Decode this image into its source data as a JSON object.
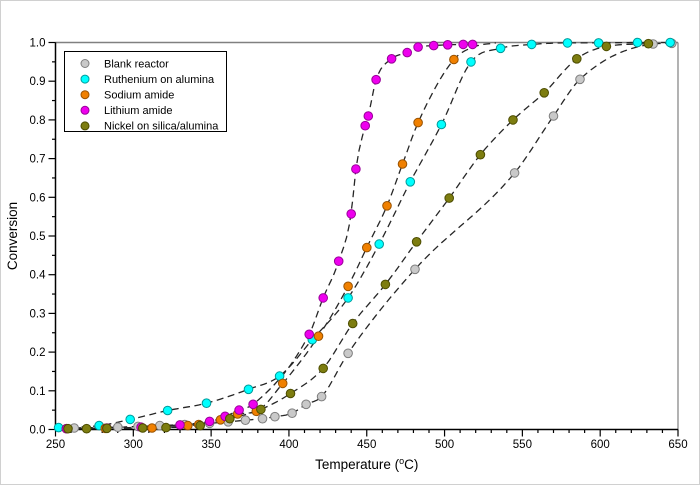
{
  "figure": {
    "background": "#ffffff",
    "border_color": "#d0d0d0"
  },
  "chart_data": {
    "type": "scatter",
    "title": "",
    "xlabel": "Temperature (°C)",
    "ylabel": "Conversion",
    "xlim": [
      250,
      650
    ],
    "ylim": [
      0.0,
      1.0
    ],
    "x_major_tick": 50,
    "x_minor_tick": 10,
    "y_major_tick": 0.1,
    "y_minor_tick": 0.05,
    "grid": false,
    "legend_position": "top-left",
    "fit_line_style": "dashed",
    "fit_line_color": "#262626",
    "frame_color": "#808080",
    "axis_color": "#000000",
    "series": [
      {
        "name": "Blank reactor",
        "slug": "blank-reactor",
        "color": "#c9c9c9",
        "edge": "#7f7f7f",
        "points": [
          [
            262,
            0.004
          ],
          [
            290,
            0.006
          ],
          [
            303,
            0.008
          ],
          [
            317,
            0.01
          ],
          [
            333,
            0.013
          ],
          [
            349,
            0.016
          ],
          [
            361,
            0.02
          ],
          [
            372,
            0.024
          ],
          [
            383,
            0.028
          ],
          [
            391,
            0.033
          ],
          [
            402,
            0.042
          ],
          [
            411,
            0.065
          ],
          [
            421,
            0.085
          ],
          [
            438,
            0.197
          ],
          [
            481,
            0.414
          ],
          [
            545,
            0.663
          ],
          [
            570,
            0.81
          ],
          [
            587,
            0.905
          ],
          [
            634,
            0.996
          ],
          [
            646,
            0.998
          ]
        ],
        "line_anchors": []
      },
      {
        "name": "Ruthenium on alumina",
        "slug": "ruthenium-on-alumina",
        "color": "#00ffff",
        "edge": "#009a9a",
        "points": [
          [
            252,
            0.005
          ],
          [
            278,
            0.01
          ],
          [
            298,
            0.026
          ],
          [
            322,
            0.049
          ],
          [
            347,
            0.068
          ],
          [
            374,
            0.104
          ],
          [
            394,
            0.138
          ],
          [
            415,
            0.232
          ],
          [
            438,
            0.34
          ],
          [
            458,
            0.479
          ],
          [
            478,
            0.64
          ],
          [
            498,
            0.788
          ],
          [
            517,
            0.95
          ],
          [
            536,
            0.985
          ],
          [
            556,
            0.995
          ],
          [
            579,
            0.999
          ],
          [
            599,
            0.999
          ],
          [
            624,
            1.0
          ],
          [
            645,
            1.0
          ]
        ],
        "line_anchors": []
      },
      {
        "name": "Sodium amide",
        "slug": "sodium-amide",
        "color": "#f08000",
        "edge": "#995200",
        "points": [
          [
            257,
            0.002
          ],
          [
            282,
            0.003
          ],
          [
            312,
            0.004
          ],
          [
            335,
            0.01
          ],
          [
            342,
            0.013
          ],
          [
            356,
            0.025
          ],
          [
            367,
            0.04
          ],
          [
            379,
            0.047
          ],
          [
            396,
            0.119
          ],
          [
            419,
            0.241
          ],
          [
            438,
            0.37
          ],
          [
            450,
            0.47
          ],
          [
            463,
            0.578
          ],
          [
            473,
            0.686
          ],
          [
            483,
            0.793
          ],
          [
            506,
            0.956
          ]
        ],
        "line_anchors": [
          [
            520,
            0.99
          ],
          [
            533,
            0.999
          ]
        ]
      },
      {
        "name": "Lithium amide",
        "slug": "lithium-amide",
        "color": "#ee00ee",
        "edge": "#990099",
        "points": [
          [
            257,
            0.002
          ],
          [
            283,
            0.004
          ],
          [
            305,
            0.006
          ],
          [
            330,
            0.012
          ],
          [
            349,
            0.021
          ],
          [
            359,
            0.034
          ],
          [
            368,
            0.05
          ],
          [
            377,
            0.065
          ],
          [
            413,
            0.246
          ],
          [
            422,
            0.34
          ],
          [
            432,
            0.435
          ],
          [
            440,
            0.557
          ],
          [
            443,
            0.673
          ],
          [
            449,
            0.785
          ],
          [
            451,
            0.81
          ],
          [
            456,
            0.904
          ],
          [
            466,
            0.958
          ],
          [
            476,
            0.974
          ],
          [
            483,
            0.988
          ],
          [
            493,
            0.992
          ],
          [
            502,
            0.994
          ],
          [
            512,
            0.995
          ],
          [
            518,
            0.995
          ]
        ],
        "line_anchors": []
      },
      {
        "name": "Nickel on silica/alumina",
        "slug": "nickel-on-silica-alumina",
        "color": "#7d7d10",
        "edge": "#4d4d00",
        "points": [
          [
            258,
            0.002
          ],
          [
            270,
            0.002
          ],
          [
            283,
            0.003
          ],
          [
            306,
            0.004
          ],
          [
            321,
            0.005
          ],
          [
            343,
            0.01
          ],
          [
            362,
            0.028
          ],
          [
            382,
            0.052
          ],
          [
            401,
            0.093
          ],
          [
            422,
            0.158
          ],
          [
            441,
            0.274
          ],
          [
            462,
            0.375
          ],
          [
            482,
            0.485
          ],
          [
            503,
            0.598
          ],
          [
            523,
            0.71
          ],
          [
            544,
            0.8
          ],
          [
            564,
            0.87
          ],
          [
            585,
            0.958
          ],
          [
            604,
            0.99
          ],
          [
            631,
            0.997
          ]
        ],
        "line_anchors": []
      }
    ]
  }
}
